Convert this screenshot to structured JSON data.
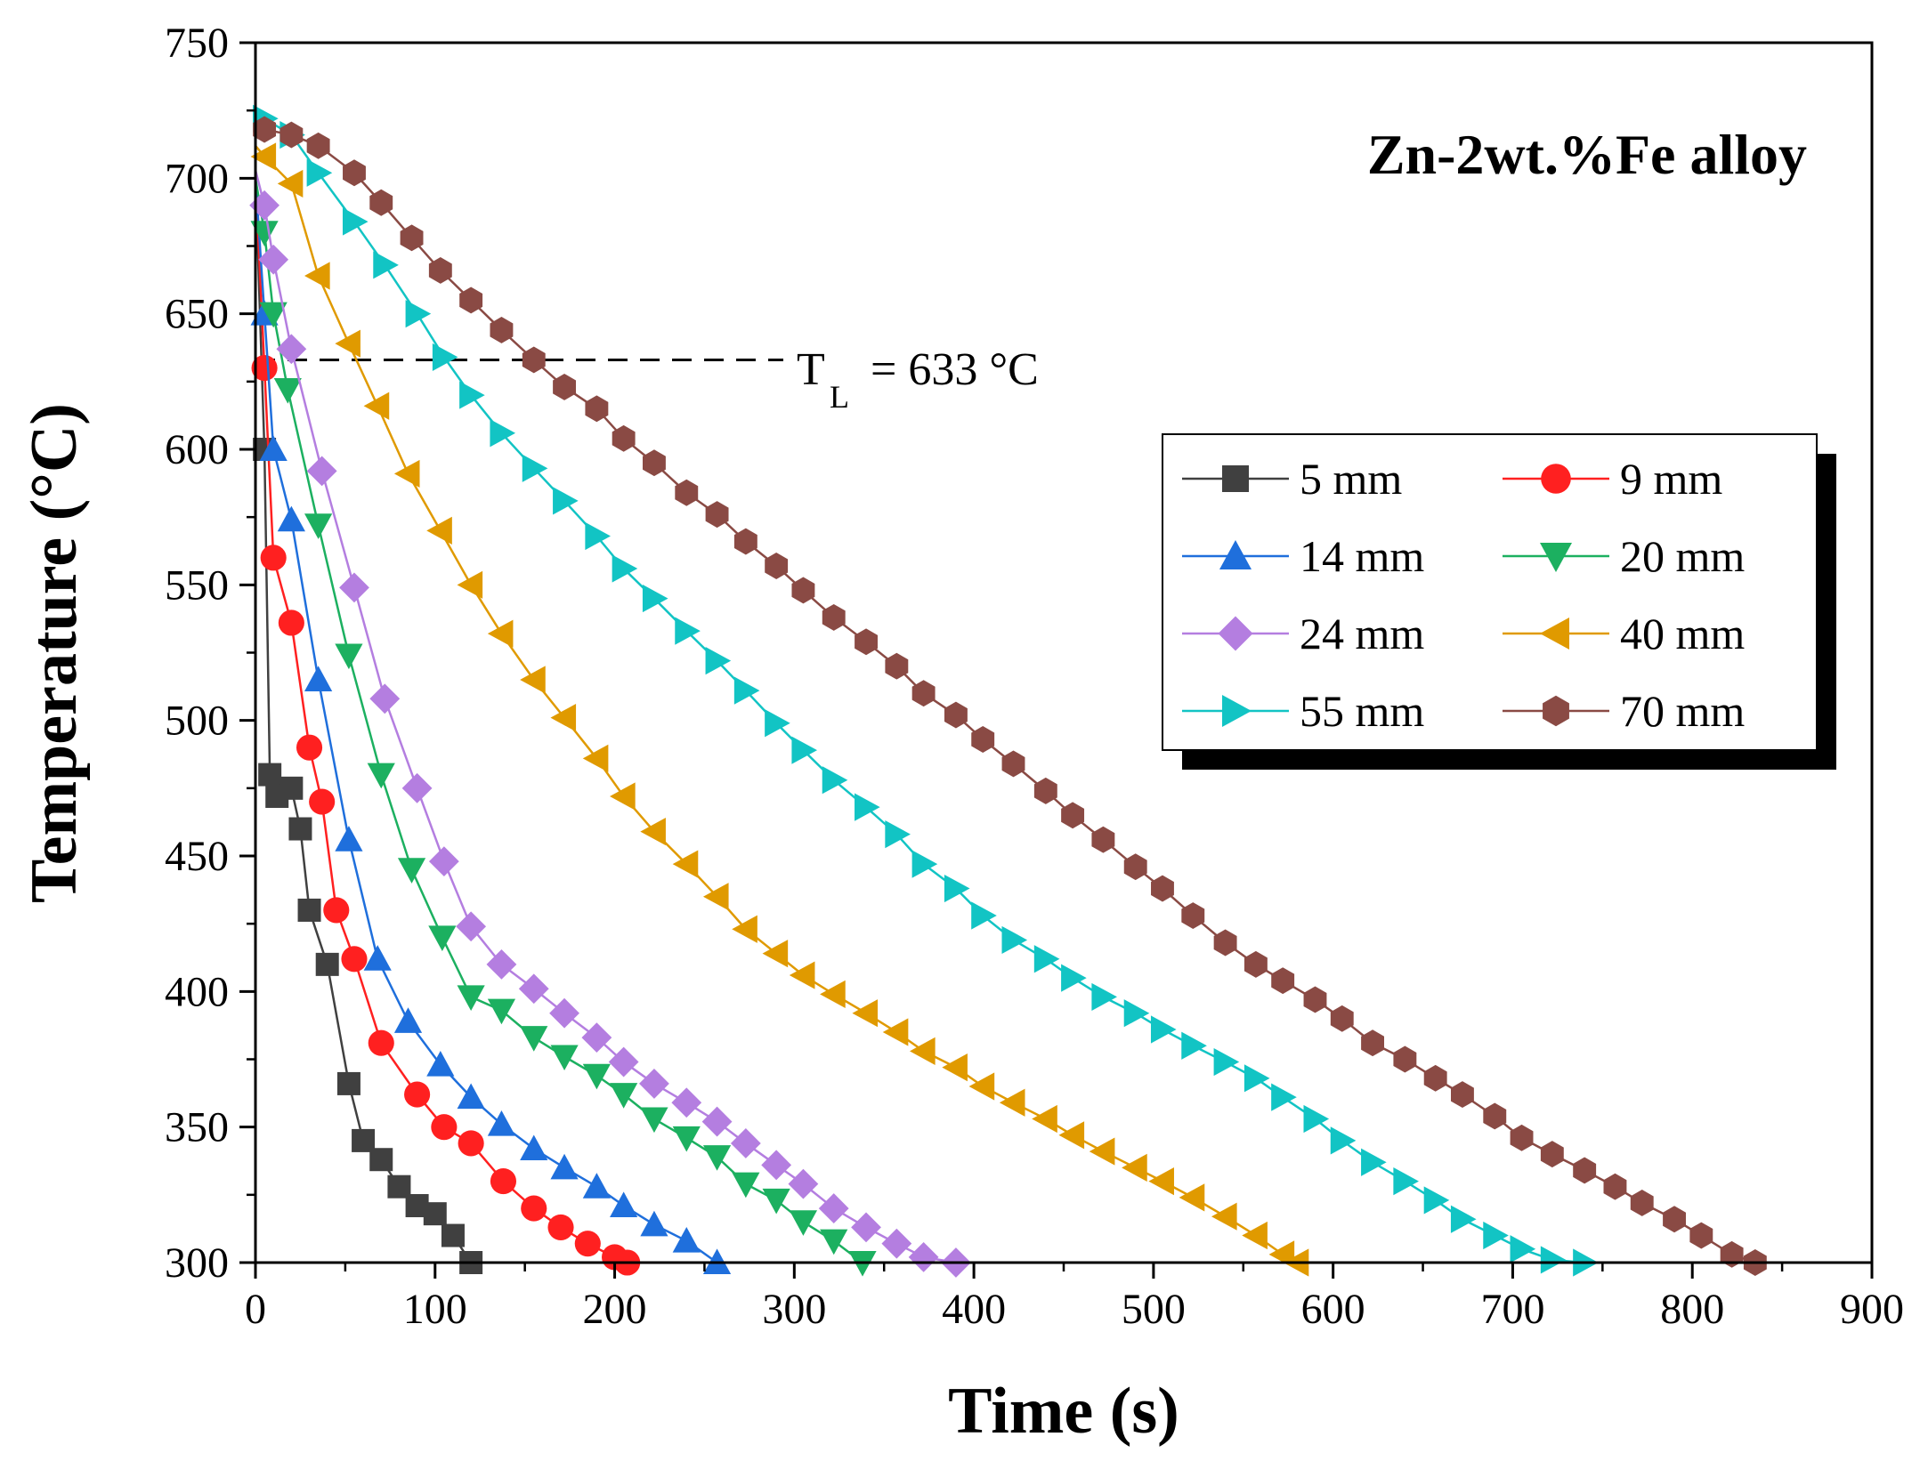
{
  "chart_data": {
    "type": "line",
    "title": "",
    "annotation": "Zn-2wt.%Fe alloy",
    "xlabel": "Time (s)",
    "ylabel": "Temperature (°C)",
    "xlim": [
      0,
      900
    ],
    "ylim": [
      300,
      750
    ],
    "xticks": [
      0,
      100,
      200,
      300,
      400,
      500,
      600,
      700,
      800,
      900
    ],
    "yticks": [
      300,
      350,
      400,
      450,
      500,
      550,
      600,
      650,
      700,
      750
    ],
    "reference_line": {
      "y": 633,
      "label_main": "T",
      "label_sub": "L",
      "label_rest": " = 633 °C"
    },
    "legend_position": "right",
    "series": [
      {
        "name": "5 mm",
        "color": "#404040",
        "marker": "square",
        "x": [
          0,
          5,
          8,
          12,
          20,
          25,
          30,
          40,
          52,
          60,
          70,
          80,
          90,
          100,
          110,
          120
        ],
        "y": [
          700,
          600,
          480,
          472,
          475,
          460,
          430,
          410,
          366,
          345,
          338,
          328,
          321,
          318,
          310,
          300
        ]
      },
      {
        "name": "9 mm",
        "color": "#ff2020",
        "marker": "circle",
        "x": [
          0,
          5,
          10,
          20,
          30,
          37,
          45,
          55,
          70,
          90,
          105,
          120,
          138,
          155,
          170,
          185,
          200,
          207
        ],
        "y": [
          700,
          630,
          560,
          536,
          490,
          470,
          430,
          412,
          381,
          362,
          350,
          344,
          330,
          320,
          313,
          307,
          302,
          300
        ]
      },
      {
        "name": "14 mm",
        "color": "#1f6fdc",
        "marker": "triangle-up",
        "x": [
          0,
          5,
          10,
          20,
          35,
          52,
          68,
          85,
          103,
          120,
          137,
          155,
          172,
          190,
          205,
          222,
          240,
          257
        ],
        "y": [
          700,
          650,
          600,
          574,
          515,
          456,
          412,
          389,
          373,
          361,
          351,
          342,
          335,
          328,
          321,
          314,
          308,
          300
        ]
      },
      {
        "name": "20 mm",
        "color": "#1cb060",
        "marker": "triangle-down",
        "x": [
          0,
          5,
          10,
          18,
          35,
          52,
          70,
          87,
          104,
          120,
          137,
          155,
          172,
          190,
          205,
          222,
          240,
          257,
          273,
          290,
          305,
          322,
          338
        ],
        "y": [
          700,
          680,
          650,
          622,
          572,
          524,
          480,
          445,
          420,
          398,
          393,
          383,
          376,
          369,
          362,
          353,
          346,
          339,
          329,
          323,
          315,
          308,
          300
        ]
      },
      {
        "name": "24 mm",
        "color": "#b47ee0",
        "marker": "diamond",
        "x": [
          0,
          5,
          10,
          20,
          37,
          55,
          72,
          90,
          105,
          120,
          137,
          155,
          172,
          190,
          205,
          222,
          240,
          257,
          273,
          290,
          305,
          322,
          340,
          357,
          372,
          390
        ],
        "y": [
          703,
          690,
          670,
          637,
          592,
          549,
          508,
          475,
          448,
          424,
          410,
          401,
          392,
          383,
          374,
          366,
          359,
          352,
          344,
          336,
          329,
          320,
          313,
          307,
          302,
          300
        ]
      },
      {
        "name": "40 mm",
        "color": "#e09a00",
        "marker": "triangle-left",
        "x": [
          0,
          5,
          20,
          35,
          52,
          68,
          85,
          103,
          120,
          137,
          155,
          172,
          190,
          205,
          222,
          240,
          257,
          273,
          290,
          305,
          322,
          340,
          357,
          372,
          390,
          405,
          422,
          440,
          455,
          472,
          490,
          505,
          522,
          540,
          557,
          572,
          580
        ],
        "y": [
          712,
          708,
          698,
          664,
          639,
          616,
          591,
          570,
          550,
          532,
          515,
          501,
          486,
          472,
          459,
          447,
          435,
          423,
          414,
          406,
          399,
          392,
          385,
          378,
          372,
          365,
          359,
          353,
          347,
          341,
          335,
          330,
          324,
          317,
          310,
          303,
          300
        ]
      },
      {
        "name": "55 mm",
        "color": "#12c4c4",
        "marker": "triangle-right",
        "x": [
          0,
          5,
          20,
          35,
          55,
          72,
          90,
          105,
          120,
          137,
          155,
          172,
          190,
          205,
          222,
          240,
          257,
          273,
          290,
          305,
          322,
          340,
          357,
          372,
          390,
          405,
          422,
          440,
          455,
          472,
          490,
          505,
          522,
          540,
          557,
          572,
          590,
          605,
          622,
          640,
          657,
          672,
          690,
          705,
          722,
          740
        ],
        "y": [
          725,
          722,
          716,
          702,
          684,
          668,
          650,
          634,
          620,
          606,
          593,
          581,
          568,
          556,
          545,
          533,
          522,
          511,
          499,
          489,
          478,
          468,
          458,
          447,
          438,
          428,
          419,
          412,
          405,
          398,
          392,
          386,
          380,
          374,
          368,
          361,
          353,
          345,
          337,
          330,
          323,
          316,
          310,
          305,
          301,
          300
        ]
      },
      {
        "name": "70 mm",
        "color": "#8a4a44",
        "marker": "hexagon",
        "x": [
          0,
          5,
          20,
          35,
          55,
          70,
          87,
          103,
          120,
          137,
          155,
          172,
          190,
          205,
          222,
          240,
          257,
          273,
          290,
          305,
          322,
          340,
          357,
          372,
          390,
          405,
          422,
          440,
          455,
          472,
          490,
          505,
          522,
          540,
          557,
          572,
          590,
          605,
          622,
          640,
          657,
          672,
          690,
          705,
          722,
          740,
          757,
          772,
          790,
          805,
          822,
          835
        ],
        "y": [
          720,
          718,
          716,
          712,
          702,
          691,
          678,
          666,
          655,
          644,
          633,
          623,
          615,
          604,
          595,
          584,
          576,
          566,
          557,
          548,
          538,
          529,
          520,
          510,
          502,
          493,
          484,
          474,
          465,
          456,
          446,
          438,
          428,
          418,
          410,
          404,
          397,
          390,
          381,
          375,
          368,
          362,
          354,
          346,
          340,
          334,
          328,
          322,
          316,
          310,
          303,
          300
        ]
      }
    ]
  }
}
